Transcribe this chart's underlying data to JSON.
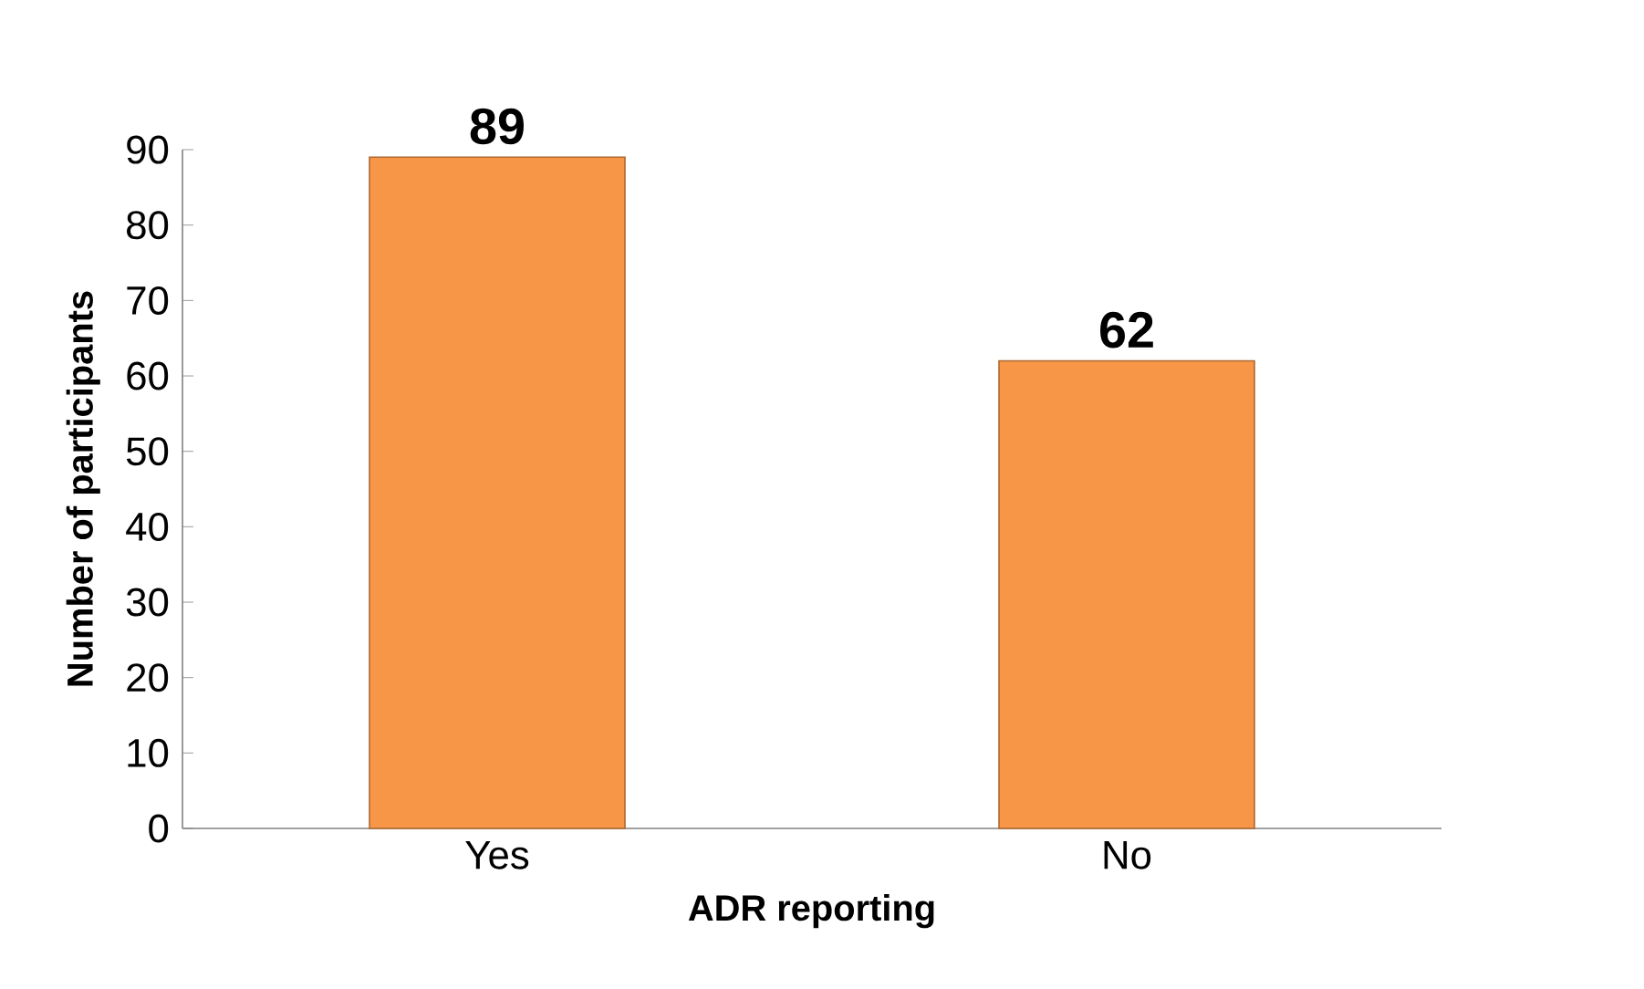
{
  "chart_data": {
    "type": "bar",
    "xlabel": "ADR reporting",
    "ylabel": "Number of participants",
    "categories": [
      "Yes",
      "No"
    ],
    "values": [
      89,
      62
    ],
    "color": "#f79646",
    "data_labels": true,
    "ylim": [
      0,
      90
    ],
    "yticks": [
      0,
      10,
      20,
      30,
      40,
      50,
      60,
      70,
      80,
      90
    ]
  }
}
